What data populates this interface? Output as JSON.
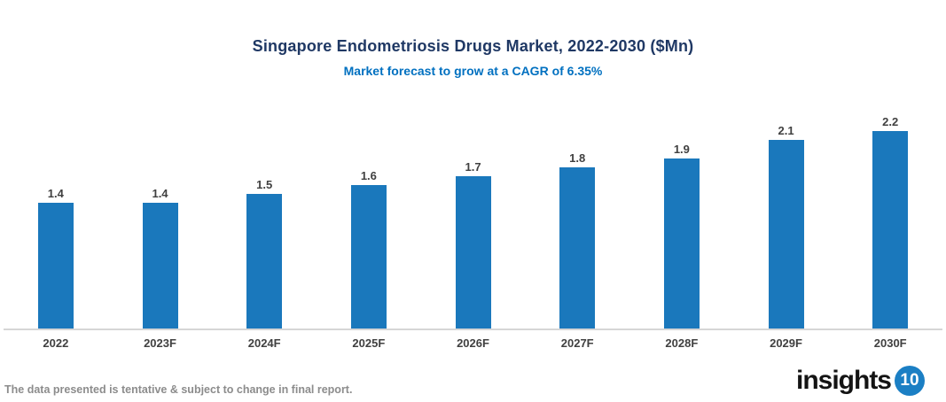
{
  "chart_data": {
    "type": "bar",
    "title": "Singapore Endometriosis Drugs Market, 2022-2030 ($Mn)",
    "subtitle": "Market forecast to grow at a CAGR of 6.35%",
    "categories": [
      "2022",
      "2023F",
      "2024F",
      "2025F",
      "2026F",
      "2027F",
      "2028F",
      "2029F",
      "2030F"
    ],
    "values": [
      1.4,
      1.4,
      1.5,
      1.6,
      1.7,
      1.8,
      1.9,
      2.1,
      2.2
    ],
    "xlabel": "",
    "ylabel": "",
    "ylim": [
      0,
      2.5
    ],
    "grid": false,
    "legend": false,
    "value_labels_shown": true
  },
  "colors": {
    "bar": "#1A78BC",
    "title": "#1F3864",
    "subtitle": "#0070C0",
    "value_label": "#404040",
    "axis_label": "#404040",
    "axis_line": "#D6D6D6",
    "disclaimer": "#8C8C8C",
    "logo_text": "#141414",
    "logo_badge": "#1B7FC4"
  },
  "footer": {
    "disclaimer": "The data presented is tentative & subject to change in final report.",
    "logo_text": "insights",
    "logo_number": "10"
  }
}
